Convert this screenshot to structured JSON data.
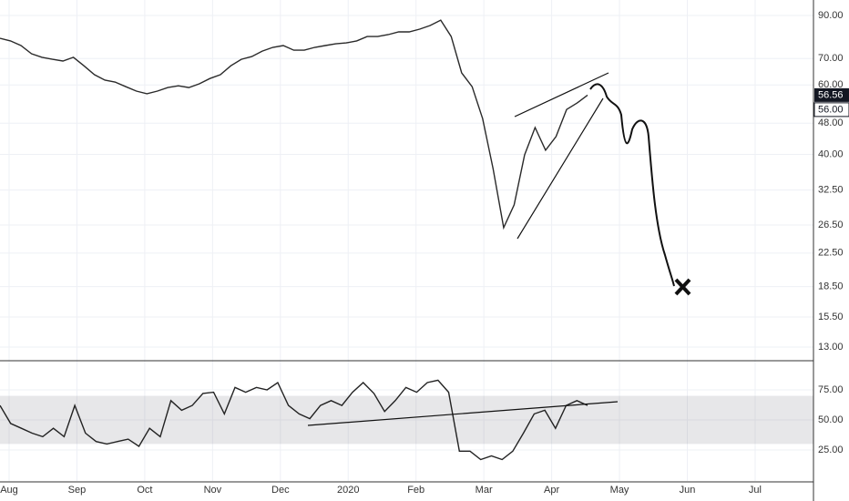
{
  "chart_data": [
    {
      "type": "line",
      "log_scale": true,
      "grid": true,
      "color": "#2a2a2a",
      "ylim": [
        12.07,
        98.5
      ],
      "yticks": [
        {
          "value": 90,
          "label": "90.00"
        },
        {
          "value": 70,
          "label": "70.00"
        },
        {
          "value": 60,
          "label": "60.00"
        },
        {
          "value": 48,
          "label": "48.00"
        },
        {
          "value": 40,
          "label": "40.00"
        },
        {
          "value": 32.5,
          "label": "32.50"
        },
        {
          "value": 26.5,
          "label": "26.50"
        },
        {
          "value": 22.5,
          "label": "22.50"
        },
        {
          "value": 18.5,
          "label": "18.50"
        },
        {
          "value": 15.5,
          "label": "15.50"
        },
        {
          "value": 13,
          "label": "13.00"
        }
      ],
      "x_labels": [
        "Aug",
        "Sep",
        "Oct",
        "Nov",
        "Dec",
        "2020",
        "Feb",
        "Mar",
        "Apr",
        "May",
        "Jun",
        "Jul"
      ],
      "price_markers": [
        56.56,
        {
          "value": 56,
          "label": "56.00"
        }
      ],
      "values": [
        78.8,
        77.6,
        75.5,
        72.0,
        70.5,
        69.7,
        69.0,
        70.5,
        67.1,
        63.7,
        61.7,
        61.0,
        59.4,
        57.9,
        57.0,
        57.9,
        59.1,
        59.7,
        59.1,
        60.4,
        62.3,
        63.7,
        67.1,
        69.7,
        70.8,
        73.1,
        74.7,
        75.5,
        73.5,
        73.5,
        74.7,
        75.5,
        76.3,
        76.7,
        77.6,
        79.6,
        79.6,
        80.5,
        81.8,
        81.8,
        83.1,
        84.9,
        87.6,
        79.6,
        64.4,
        59.4,
        49.3,
        36.8,
        26.1,
        29.8,
        39.9,
        46.8,
        41.0,
        44.4,
        52.0,
        54.0,
        56.56
      ]
    },
    {
      "type": "line",
      "grid": true,
      "color": "#222222",
      "ylim": [
        -0.8,
        97.7
      ],
      "yticks": [
        {
          "value": 75,
          "label": "75.00"
        },
        {
          "value": 50,
          "label": "50.00"
        },
        {
          "value": 25,
          "label": "25.00"
        }
      ],
      "band": [
        30,
        70
      ],
      "values": [
        62,
        47,
        43,
        39,
        36,
        43,
        36,
        62,
        39,
        32,
        30,
        32,
        34,
        28,
        43,
        36,
        66,
        58,
        62,
        72,
        73,
        55,
        77,
        73,
        77,
        75,
        81,
        62,
        55,
        51,
        62,
        66,
        62,
        73,
        81,
        72,
        57,
        66,
        77,
        73,
        81,
        83,
        73,
        24,
        24,
        17,
        20,
        17,
        24,
        39,
        55,
        58,
        43,
        62,
        66,
        62
      ]
    }
  ]
}
